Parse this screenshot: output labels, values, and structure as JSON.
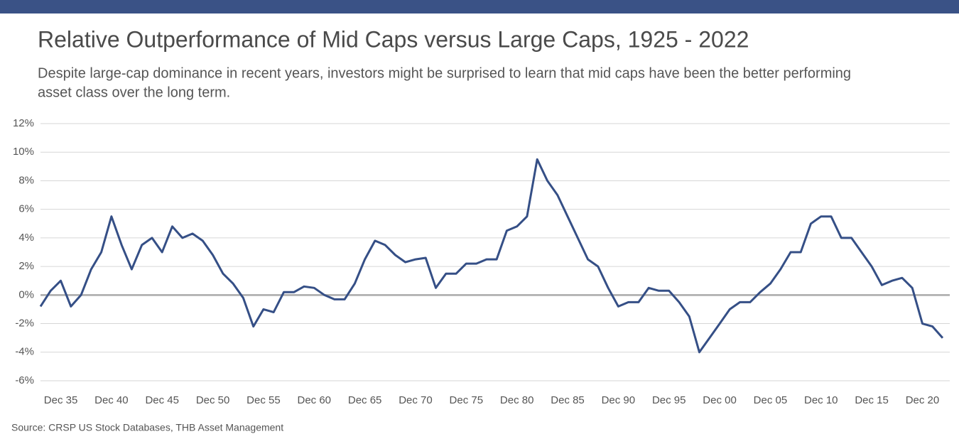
{
  "chart_data": {
    "type": "line",
    "title": "Relative Outperformance of Mid Caps versus Large Caps, 1925 - 2022",
    "subtitle": [
      "Despite large-cap dominance in recent years, investors might be surprised to learn that mid caps have been the better performing",
      "asset class over the long term."
    ],
    "source": "Source: CRSP US Stock Databases, THB Asset Management",
    "color": "#354f86",
    "categories": [
      null,
      null,
      "Dec 35",
      null,
      null,
      null,
      null,
      "Dec 40",
      null,
      null,
      null,
      null,
      "Dec 45",
      null,
      null,
      null,
      null,
      "Dec 50",
      null,
      null,
      null,
      null,
      "Dec 55",
      null,
      null,
      null,
      null,
      "Dec 60",
      null,
      null,
      null,
      null,
      "Dec 65",
      null,
      null,
      null,
      null,
      "Dec 70",
      null,
      null,
      null,
      null,
      "Dec 75",
      null,
      null,
      null,
      null,
      "Dec 80",
      null,
      null,
      null,
      null,
      "Dec 85",
      null,
      null,
      null,
      null,
      "Dec 90",
      null,
      null,
      null,
      null,
      "Dec 95",
      null,
      null,
      null,
      null,
      "Dec 00",
      null,
      null,
      null,
      null,
      "Dec 05",
      null,
      null,
      null,
      null,
      "Dec 10",
      null,
      null,
      null,
      null,
      "Dec 15",
      null,
      null,
      null,
      null,
      "Dec 20",
      null,
      null
    ],
    "values": [
      -0.8,
      0.3,
      1.0,
      -0.8,
      0.0,
      1.8,
      3.0,
      5.5,
      3.5,
      1.8,
      3.5,
      4.0,
      3.0,
      4.8,
      4.0,
      4.3,
      3.8,
      2.8,
      1.5,
      0.8,
      -0.2,
      -2.2,
      -1.0,
      -1.2,
      0.2,
      0.2,
      0.6,
      0.5,
      0.0,
      -0.3,
      -0.3,
      0.8,
      2.5,
      3.8,
      3.5,
      2.8,
      2.3,
      2.5,
      2.6,
      0.5,
      1.5,
      1.5,
      2.2,
      2.2,
      2.5,
      2.5,
      4.5,
      4.8,
      5.5,
      9.5,
      8.0,
      7.0,
      5.5,
      4.0,
      2.5,
      2.0,
      0.5,
      -0.8,
      -0.5,
      -0.5,
      0.5,
      0.3,
      0.3,
      -0.5,
      -1.5,
      -4.0,
      -3.0,
      -2.0,
      -1.0,
      -0.5,
      -0.5,
      0.2,
      0.8,
      1.8,
      3.0,
      3.0,
      5.0,
      5.5,
      5.5,
      4.0,
      4.0,
      3.0,
      2.0,
      0.7,
      1.0,
      1.2,
      0.5,
      -2.0,
      -2.2,
      -3.0
    ],
    "ylim": [
      -6,
      12
    ],
    "yticks": [
      {
        "value": -6,
        "label": "-6%"
      },
      {
        "value": -4,
        "label": "-4%"
      },
      {
        "value": -2,
        "label": "-2%"
      },
      {
        "value": 0,
        "label": "0%"
      },
      {
        "value": 2,
        "label": "2%"
      },
      {
        "value": 4,
        "label": "4%"
      },
      {
        "value": 6,
        "label": "6%"
      },
      {
        "value": 8,
        "label": "8%"
      },
      {
        "value": 10,
        "label": "10%"
      },
      {
        "value": 12,
        "label": "12%"
      }
    ],
    "grid": true
  }
}
